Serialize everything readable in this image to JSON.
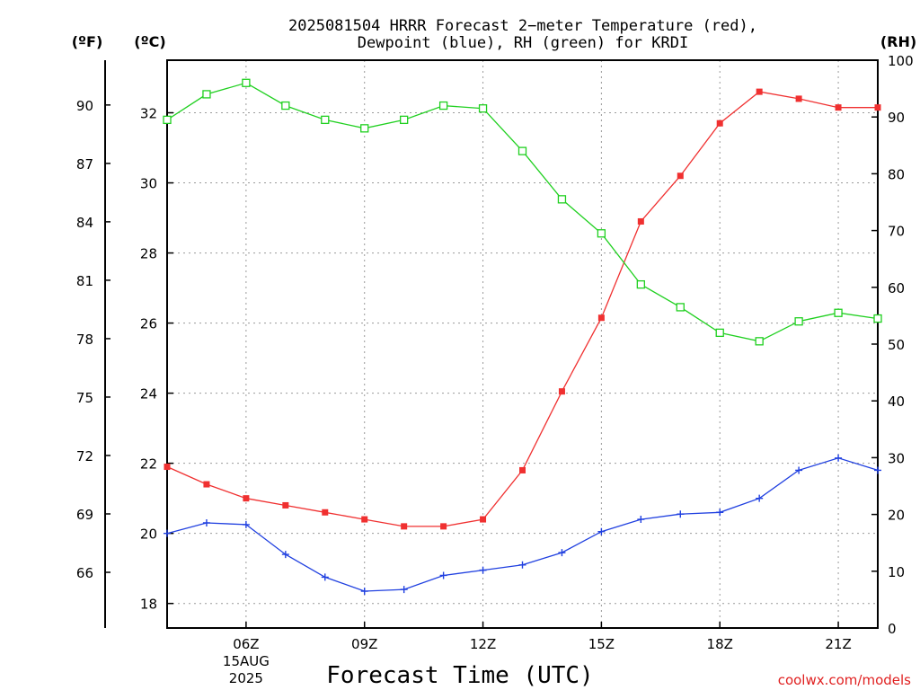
{
  "chart_data": {
    "type": "line",
    "title_lines": [
      "2025081504 HRRR Forecast 2−meter Temperature (red),",
      "Dewpoint (blue), RH (green) for KRDI"
    ],
    "xlabel": "Forecast Time (UTC)",
    "credit": "coolwx.com/models",
    "units": {
      "f": "(ºF)",
      "c": "(ºC)",
      "rh": "(RH)"
    },
    "x_hours": [
      4,
      5,
      6,
      7,
      8,
      9,
      10,
      11,
      12,
      13,
      14,
      15,
      16,
      17,
      18,
      19,
      20,
      21,
      22
    ],
    "x_ticks": [
      {
        "hour": 6,
        "label": "06Z",
        "sub": [
          "15AUG",
          "2025"
        ]
      },
      {
        "hour": 9,
        "label": "09Z"
      },
      {
        "hour": 12,
        "label": "12Z"
      },
      {
        "hour": 15,
        "label": "15Z"
      },
      {
        "hour": 18,
        "label": "18Z"
      },
      {
        "hour": 21,
        "label": "21Z"
      }
    ],
    "xlim": [
      4,
      22
    ],
    "celsius_ylim": [
      17.3,
      33.5
    ],
    "celsius_ticks": [
      "18",
      "20",
      "22",
      "24",
      "26",
      "28",
      "30",
      "32"
    ],
    "fahrenheit_ticks": [
      "66",
      "69",
      "72",
      "75",
      "78",
      "81",
      "84",
      "87",
      "90"
    ],
    "rh_ylim": [
      0,
      100
    ],
    "rh_ticks": [
      "0",
      "10",
      "20",
      "30",
      "40",
      "50",
      "60",
      "70",
      "80",
      "90",
      "100"
    ],
    "series": [
      {
        "name": "Temperature",
        "axis": "celsius",
        "color": "#f03030",
        "marker": "filled-square",
        "values": [
          21.9,
          21.4,
          21.0,
          20.8,
          20.6,
          20.4,
          20.2,
          20.2,
          20.4,
          21.8,
          24.05,
          26.15,
          28.9,
          30.2,
          31.7,
          32.6,
          32.4,
          32.15,
          32.15
        ]
      },
      {
        "name": "Dewpoint",
        "axis": "celsius",
        "color": "#2040e0",
        "marker": "plus",
        "values": [
          20.0,
          20.3,
          20.25,
          19.4,
          18.75,
          18.35,
          18.4,
          18.8,
          18.95,
          19.1,
          19.45,
          20.05,
          20.4,
          20.55,
          20.6,
          21.0,
          21.8,
          22.15,
          21.8
        ]
      },
      {
        "name": "RH",
        "axis": "rh",
        "color": "#20d020",
        "marker": "open-square",
        "values": [
          89.5,
          94.0,
          96.0,
          92.0,
          89.5,
          88.0,
          89.5,
          92.0,
          91.5,
          84.0,
          75.5,
          69.5,
          60.5,
          56.5,
          52.0,
          50.5,
          54.0,
          55.5,
          54.5
        ]
      }
    ]
  }
}
